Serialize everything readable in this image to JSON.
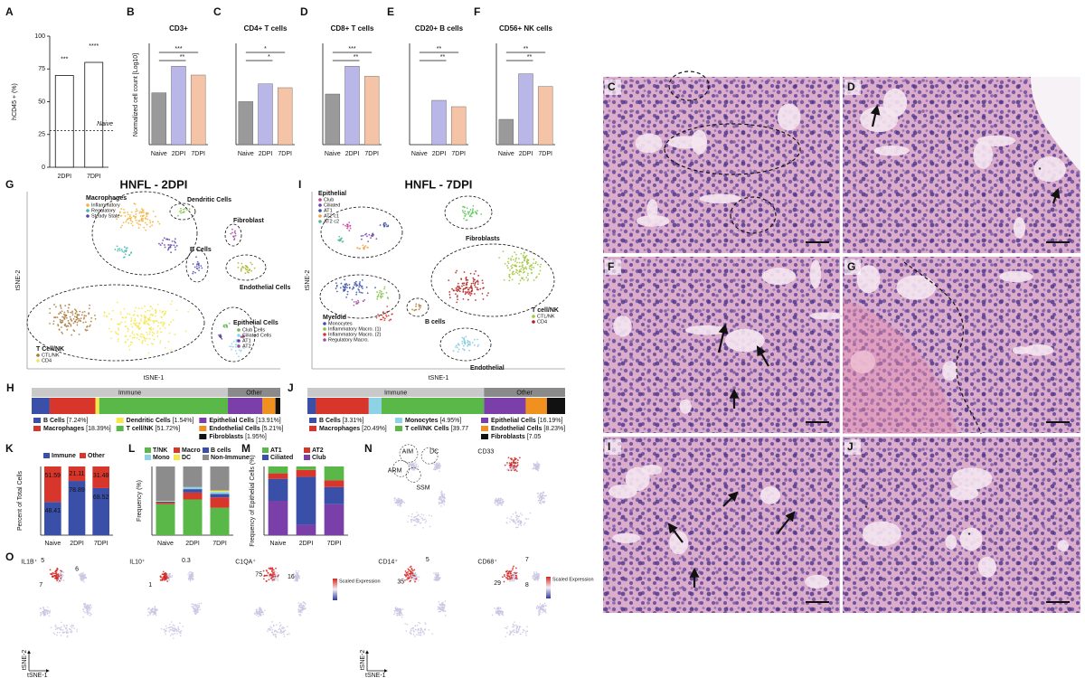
{
  "panel_a": {
    "label": "A",
    "ylabel": "hCD45 + (%)",
    "categories": [
      "2DPI",
      "7DPI"
    ],
    "values": [
      70,
      80
    ],
    "significance": [
      "***",
      "****"
    ],
    "ylim": [
      0,
      100
    ],
    "yticks": [
      0,
      25,
      50,
      75,
      100
    ],
    "baseline": 28,
    "baseline_label": "Naive"
  },
  "count_panels": {
    "ylabel": "Normalized cell count [Log10]",
    "ylim": [
      0,
      8
    ],
    "categories": [
      "Naive",
      "2DPI",
      "7DPI"
    ],
    "colors": [
      "#9a9a9a",
      "#b9b6e8",
      "#f5c4a6"
    ],
    "panels": [
      {
        "label": "B",
        "title": "CD3+",
        "values": [
          4.1,
          6.2,
          5.5
        ],
        "significance": [
          "***",
          "**"
        ]
      },
      {
        "label": "C",
        "title": "CD4+ T cells",
        "values": [
          3.4,
          4.8,
          4.5
        ],
        "significance": [
          "*",
          "*"
        ]
      },
      {
        "label": "D",
        "title": "CD8+ T cells",
        "values": [
          4.0,
          6.2,
          5.4
        ],
        "significance": [
          "***",
          "**"
        ]
      },
      {
        "label": "E",
        "title": "CD20+ B cells",
        "values": [
          0,
          3.5,
          3.0
        ],
        "significance": [
          "**",
          "**"
        ]
      },
      {
        "label": "F",
        "title": "CD56+ NK cells",
        "values": [
          2.0,
          5.6,
          4.6
        ],
        "significance": [
          "**",
          "**"
        ]
      }
    ]
  },
  "tsne_panels": [
    {
      "label": "G",
      "title": "HNFL - 2DPI",
      "xlabel": "tSNE-1",
      "ylabel": "tSNE-2",
      "groups": [
        {
          "name": "Macrophages",
          "items": [
            {
              "name": "Inflammatory",
              "color": "#f2b23a"
            },
            {
              "name": "Regulatory",
              "color": "#3fb6b0"
            },
            {
              "name": "Steady State",
              "color": "#5a3fa8"
            }
          ]
        },
        {
          "name": "Dendritic Cells",
          "color": "#7dc242"
        },
        {
          "name": "B Cells",
          "color": "#4b4bb0"
        },
        {
          "name": "Fibroblast",
          "color": "#a04fa0"
        },
        {
          "name": "Endothelial Cells",
          "color": "#a8b52a"
        },
        {
          "name": "Epithelial Cells",
          "items": [
            {
              "name": "Club Cells",
              "color": "#6fb65a"
            },
            {
              "name": "Ciliated Cells",
              "color": "#8ed2e6"
            },
            {
              "name": "AT1",
              "color": "#5a3fa8"
            },
            {
              "name": "AT2",
              "color": "#a04fa0"
            }
          ]
        },
        {
          "name": "T Cell/NK",
          "items": [
            {
              "name": "CTL/NK",
              "color": "#a87a3a"
            },
            {
              "name": "CD4",
              "color": "#f5e64a"
            }
          ]
        }
      ]
    },
    {
      "label": "I",
      "title": "HNFL - 7DPI",
      "xlabel": "tSNE-1",
      "ylabel": "tSNE-2",
      "groups": [
        {
          "name": "Epithelial",
          "items": [
            {
              "name": "Club",
              "color": "#c8399a"
            },
            {
              "name": "Ciliated",
              "color": "#6a3fa8"
            },
            {
              "name": "AT1",
              "color": "#3a4fa8"
            },
            {
              "name": "AT2 c1",
              "color": "#f2a23a"
            },
            {
              "name": "AT2 c2",
              "color": "#4fb89a"
            }
          ]
        },
        {
          "name": "Fibroblasts",
          "color": "#5cc45a"
        },
        {
          "name": "Myeloid",
          "items": [
            {
              "name": "Monocytes",
              "color": "#3a4fa8"
            },
            {
              "name": "Inflammatory Macro. (1)",
              "color": "#7dc242"
            },
            {
              "name": "Inflammatory Macro. (2)",
              "color": "#d8362b"
            },
            {
              "name": "Regulatory Macro.",
              "color": "#a04fa0"
            }
          ]
        },
        {
          "name": "B cells",
          "color": "#a87a3a"
        },
        {
          "name": "Endothelial",
          "color": "#7ec8e0"
        },
        {
          "name": "T cell/NK",
          "items": [
            {
              "name": "CTL/NK",
              "color": "#9dc43a"
            },
            {
              "name": "CD4",
              "color": "#b0201c"
            }
          ]
        }
      ]
    }
  ],
  "composition_panels": [
    {
      "label": "H",
      "groups": [
        {
          "name": "Immune",
          "items": [
            {
              "name": "B Cells",
              "value": 7.24,
              "value_label": "[7.24%]",
              "color": "#3a4fa8"
            },
            {
              "name": "Macrophages",
              "value": 18.39,
              "value_label": "[18.39%]",
              "color": "#d8362b"
            },
            {
              "name": "Dendritic Cells",
              "value": 1.54,
              "value_label": "[1.54%]",
              "color": "#f5e64a"
            },
            {
              "name": "T cell/NK",
              "value": 51.72,
              "value_label": "[51.72%]",
              "color": "#5ab848"
            }
          ]
        },
        {
          "name": "Other",
          "items": [
            {
              "name": "Epithelial Cells",
              "value": 13.91,
              "value_label": "[13.91%]",
              "color": "#7a3fa8"
            },
            {
              "name": "Endothelial Cells",
              "value": 5.21,
              "value_label": "[5.21%]",
              "color": "#f0901e"
            },
            {
              "name": "Fibroblasts",
              "value": 1.95,
              "value_label": "[1.95%]",
              "color": "#111111"
            }
          ]
        }
      ]
    },
    {
      "label": "J",
      "groups": [
        {
          "name": "Immune",
          "items": [
            {
              "name": "B Cells",
              "value": 3.31,
              "value_label": "[3.31%]",
              "color": "#3a4fa8"
            },
            {
              "name": "Macrophages",
              "value": 20.49,
              "value_label": "[20.49%]",
              "color": "#d8362b"
            },
            {
              "name": "Monocytes",
              "value": 4.95,
              "value_label": "[4.95%]",
              "color": "#8ed2e6"
            },
            {
              "name": "T cell/NK Cells",
              "value": 39.77,
              "value_label": "[39.77",
              "color": "#5ab848"
            }
          ]
        },
        {
          "name": "Other",
          "items": [
            {
              "name": "Epithelial Cells",
              "value": 16.19,
              "value_label": "[16.19%]",
              "color": "#7a3fa8"
            },
            {
              "name": "Endothelial Cells",
              "value": 8.23,
              "value_label": "[8.23%]",
              "color": "#f0901e"
            },
            {
              "name": "Fibroblasts",
              "value": 7.05,
              "value_label": "[7.05",
              "color": "#111111"
            }
          ]
        }
      ]
    }
  ],
  "stacked_panels": [
    {
      "label": "K",
      "ylabel": "Percent of Total Cells",
      "categories": [
        "Naive",
        "2DPI",
        "7DPI"
      ],
      "ylim": [
        0,
        100
      ],
      "data_labels": true,
      "series": [
        {
          "name": "Immune",
          "color": "#3a4fa8",
          "values": [
            48.41,
            78.89,
            68.52
          ]
        },
        {
          "name": "Other",
          "color": "#d8362b",
          "values": [
            51.59,
            21.11,
            31.48
          ]
        }
      ]
    },
    {
      "label": "L",
      "ylabel": "Frequency (%)",
      "categories": [
        "Naive",
        "2DPI",
        "7DPI"
      ],
      "ylim": [
        0,
        100
      ],
      "series": [
        {
          "name": "T/NK",
          "color": "#5ab848",
          "values": [
            45,
            52,
            40
          ]
        },
        {
          "name": "Macro",
          "color": "#d8362b",
          "values": [
            2,
            10,
            15
          ]
        },
        {
          "name": "B cells",
          "color": "#3a4fa8",
          "values": [
            2,
            5,
            5
          ]
        },
        {
          "name": "Mono",
          "color": "#8ed2e6",
          "values": [
            0,
            3,
            3
          ]
        },
        {
          "name": "DC",
          "color": "#f5e64a",
          "values": [
            1,
            0,
            2
          ]
        },
        {
          "name": "Non-Immune",
          "color": "#8c8c8c",
          "values": [
            50,
            30,
            35
          ]
        }
      ]
    },
    {
      "label": "M",
      "ylabel": "Frequency of Epithelial Cells (%)",
      "categories": [
        "Naive",
        "2DPI",
        "7DPI"
      ],
      "ylim": [
        0,
        100
      ],
      "series": [
        {
          "name": "AT1",
          "color": "#5ab848",
          "values": [
            10,
            5,
            20
          ]
        },
        {
          "name": "AT2",
          "color": "#d8362b",
          "values": [
            8,
            10,
            10
          ]
        },
        {
          "name": "Ciliated",
          "color": "#3a4fa8",
          "values": [
            32,
            70,
            25
          ]
        },
        {
          "name": "Club",
          "color": "#7a3fa8",
          "values": [
            50,
            15,
            45
          ]
        }
      ]
    }
  ],
  "expression_panels": {
    "xlabel": "tSNE-1",
    "ylabel": "tSNE-2",
    "scale_label": "Scaled Expression",
    "panels": [
      {
        "label": "N",
        "maps": [
          {
            "annotations": [
              "AIM",
              "DC",
              "ARM",
              "SSM"
            ]
          },
          {
            "title": "CD33"
          },
          {
            "title": "CD14⁺",
            "annotations": [
              "5",
              "35"
            ]
          },
          {
            "title": "CD68⁺",
            "annotations": [
              "7",
              "29",
              "8"
            ]
          }
        ]
      },
      {
        "label": "O",
        "maps": [
          {
            "title": "IL1B⁺",
            "annotations": [
              "5",
              "6",
              "7"
            ]
          },
          {
            "title": "IL10⁺",
            "annotations": [
              "0.3",
              "1"
            ]
          },
          {
            "title": "C1QA⁺",
            "annotations": [
              "75",
              "16"
            ]
          }
        ]
      }
    ]
  },
  "histology_panels": [
    {
      "label": "C"
    },
    {
      "label": "D",
      "annotations": [
        "*",
        "*",
        "*",
        "*"
      ]
    },
    {
      "label": "F"
    },
    {
      "label": "G"
    },
    {
      "label": "I"
    },
    {
      "label": "J",
      "annotations": [
        "*",
        "*",
        "*"
      ]
    }
  ]
}
